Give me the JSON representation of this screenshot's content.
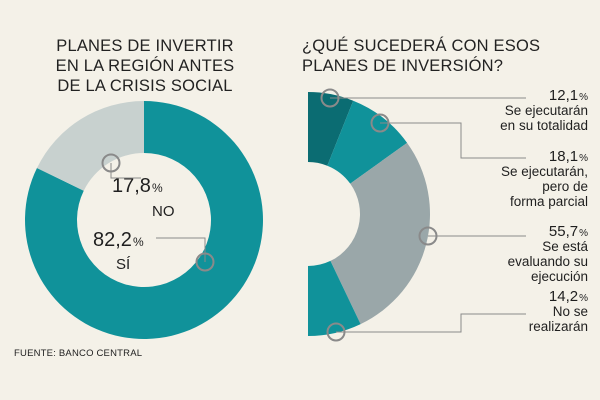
{
  "left_title": "PLANES DE INVERTIR\nEN LA REGIÓN ANTES\nDE LA CRISIS SOCIAL",
  "right_title": "¿QUÉ SUCEDERÁ CON ESOS\nPLANES DE INVERSIÓN?",
  "source": "FUENTE: BANCO CENTRAL",
  "colors": {
    "background": "#f4f1e8",
    "teal": "#10929a",
    "dark_teal": "#0b6c72",
    "gray": "#9aa7a9",
    "light_gray": "#c8d1cf",
    "leader": "#8a8a8a"
  },
  "chart_data": [
    {
      "type": "pie",
      "title": "PLANES DE INVERTIR EN LA REGIÓN ANTES DE LA CRISIS SOCIAL",
      "categories": [
        "SÍ",
        "NO"
      ],
      "values": [
        82.2,
        17.8
      ],
      "value_labels": [
        "82,2",
        "17,8"
      ],
      "unit": "%",
      "donut": true,
      "slice_colors": [
        "#10929a",
        "#c8d1cf"
      ]
    },
    {
      "type": "pie",
      "title": "¿QUÉ SUCEDERÁ CON ESOS PLANES DE INVERSIÓN?",
      "categories": [
        "Se ejecutarán en su totalidad",
        "Se ejecutarán, pero de forma parcial",
        "Se está evaluando su ejecución",
        "No se realizarán"
      ],
      "label_lines": [
        [
          "Se ejecutarán",
          "en su totalidad"
        ],
        [
          "Se ejecutarán,",
          "pero de",
          "forma parcial"
        ],
        [
          "Se está",
          "evaluando su",
          "ejecución"
        ],
        [
          "No se",
          "realizarán"
        ]
      ],
      "values": [
        12.1,
        18.1,
        55.7,
        14.2
      ],
      "value_labels": [
        "12,1",
        "18,1",
        "55,7",
        "14,2"
      ],
      "unit": "%",
      "donut": true,
      "half": "right",
      "slice_colors": [
        "#0b6c72",
        "#10929a",
        "#9aa7a9",
        "#10929a"
      ]
    }
  ]
}
